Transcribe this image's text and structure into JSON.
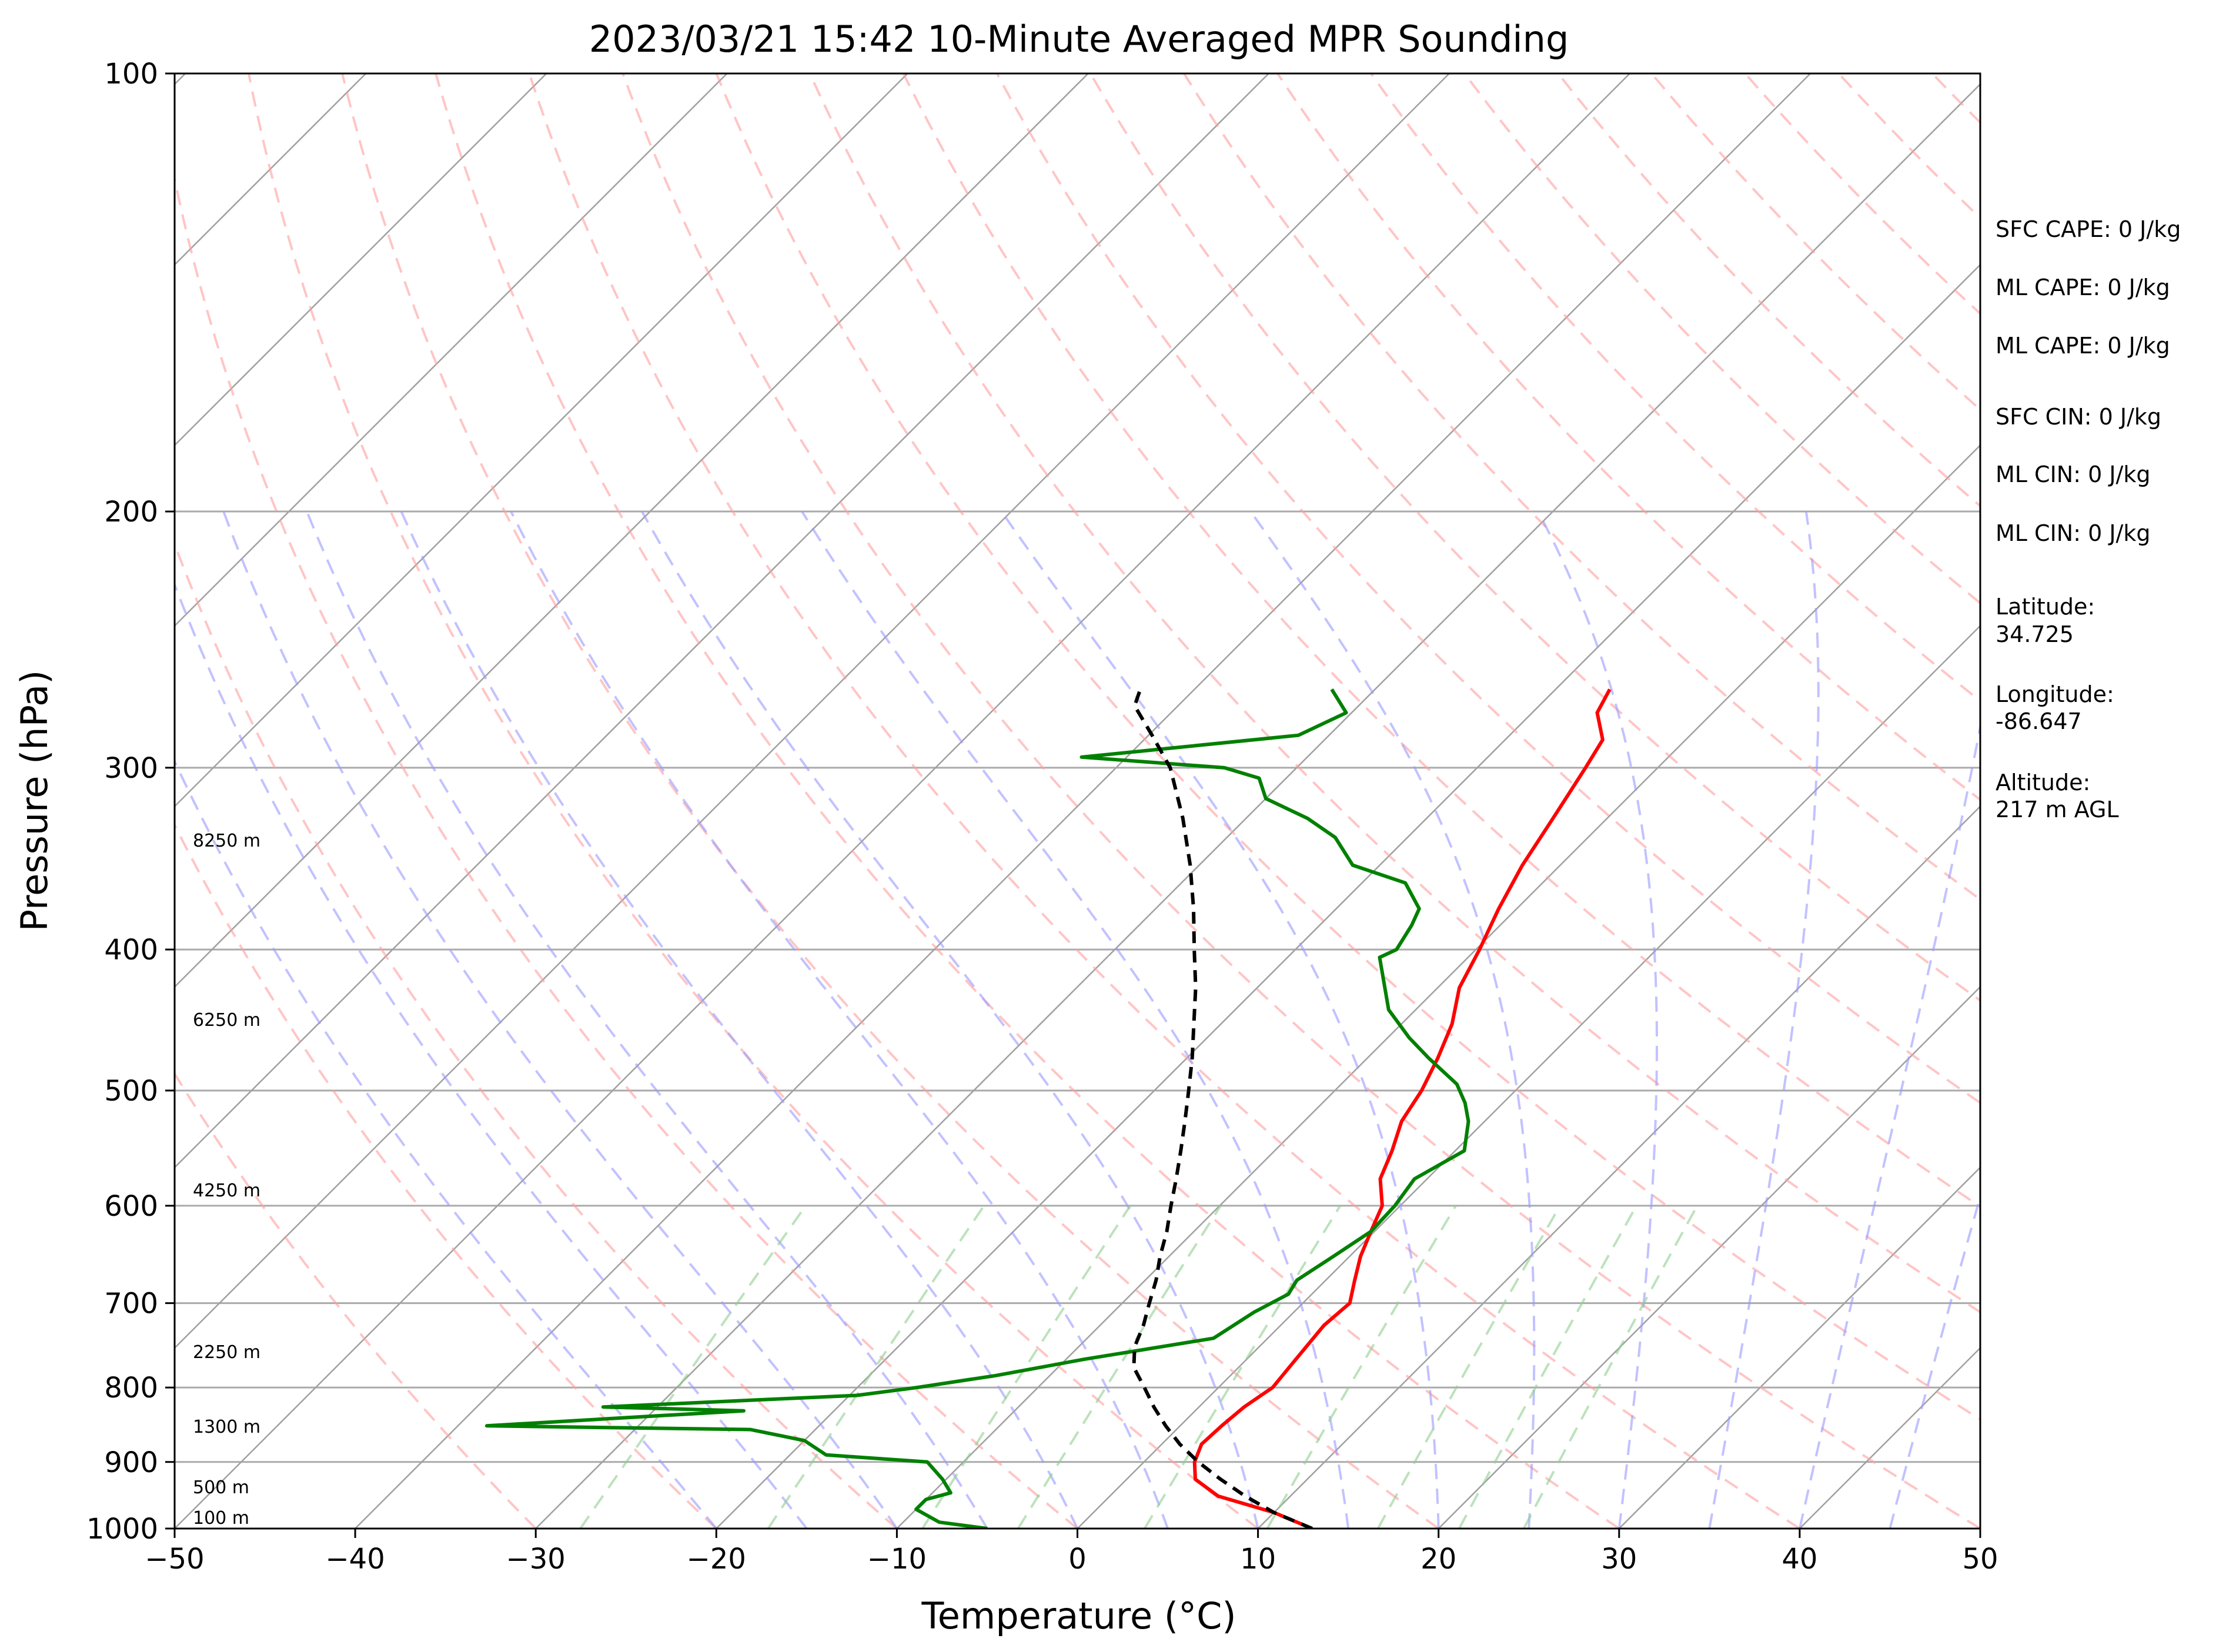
{
  "chart_data": {
    "type": "line",
    "title": "2023/03/21 15:42 10-Minute Averaged MPR Sounding",
    "xlabel": "Temperature (°C)",
    "ylabel": "Pressure (hPa)",
    "xlim": [
      -50,
      50
    ],
    "ylim": [
      1000,
      100
    ],
    "yscale": "log",
    "x_ticks": [
      "−50",
      "−40",
      "−30",
      "−20",
      "−10",
      "0",
      "10",
      "20",
      "30",
      "40",
      "50"
    ],
    "y_ticks": [
      "100",
      "200",
      "300",
      "400",
      "500",
      "600",
      "700",
      "800",
      "900",
      "1000"
    ],
    "grid": true,
    "height_labels": [
      "8250 m",
      "6250 m",
      "4250 m",
      "2250 m",
      "1300 m",
      "500 m",
      "100 m"
    ],
    "series": [
      {
        "color": "#ff0000",
        "points": [
          [
            13,
            1000
          ],
          [
            10,
            975
          ],
          [
            6,
            950
          ],
          [
            3.8,
            925
          ],
          [
            2.8,
            900
          ],
          [
            2.2,
            875
          ],
          [
            2.3,
            850
          ],
          [
            2.5,
            825
          ],
          [
            3,
            800
          ],
          [
            2.8,
            775
          ],
          [
            2.6,
            750
          ],
          [
            2.4,
            725
          ],
          [
            2.6,
            700
          ],
          [
            1.6,
            675
          ],
          [
            0.6,
            650
          ],
          [
            -0.2,
            625
          ],
          [
            -1,
            600
          ],
          [
            -2.6,
            575
          ],
          [
            -3.5,
            550
          ],
          [
            -4.6,
            525
          ],
          [
            -5.2,
            500
          ],
          [
            -6.1,
            475
          ],
          [
            -7.2,
            450
          ],
          [
            -8.8,
            425
          ],
          [
            -9.8,
            400
          ],
          [
            -11,
            375
          ],
          [
            -12.1,
            350
          ],
          [
            -13,
            325
          ],
          [
            -14,
            300
          ],
          [
            -14.6,
            287
          ],
          [
            -16.4,
            275
          ],
          [
            -17,
            265
          ]
        ]
      },
      {
        "color": "#008000",
        "points": [
          [
            -5,
            1000
          ],
          [
            -8,
            990
          ],
          [
            -10,
            970
          ],
          [
            -10,
            955
          ],
          [
            -9,
            945
          ],
          [
            -10.2,
            925
          ],
          [
            -12,
            900
          ],
          [
            -18,
            890
          ],
          [
            -20,
            870
          ],
          [
            -23.6,
            855
          ],
          [
            -38.4,
            850
          ],
          [
            -25,
            830
          ],
          [
            -33,
            825
          ],
          [
            -19.6,
            810
          ],
          [
            -16.7,
            800
          ],
          [
            -13,
            785
          ],
          [
            -9,
            765
          ],
          [
            -3,
            740
          ],
          [
            -2.2,
            710
          ],
          [
            -1.3,
            690
          ],
          [
            -1.6,
            675
          ],
          [
            -0.9,
            650
          ],
          [
            -0.2,
            625
          ],
          [
            -0.3,
            600
          ],
          [
            -0.7,
            575
          ],
          [
            0.5,
            550
          ],
          [
            -0.9,
            525
          ],
          [
            -2.1,
            510
          ],
          [
            -3.6,
            495
          ],
          [
            -6.6,
            475
          ],
          [
            -8.8,
            460
          ],
          [
            -11.5,
            440
          ],
          [
            -14.9,
            405
          ],
          [
            -14.4,
            400
          ],
          [
            -14.9,
            385
          ],
          [
            -15.4,
            375
          ],
          [
            -17.6,
            360
          ],
          [
            -21.5,
            350
          ],
          [
            -24,
            335
          ],
          [
            -26.6,
            325
          ],
          [
            -30,
            315
          ],
          [
            -31.5,
            305
          ],
          [
            -34,
            300
          ],
          [
            -42.5,
            295
          ],
          [
            -31.7,
            285
          ],
          [
            -30.3,
            275
          ],
          [
            -32.4,
            265
          ]
        ]
      },
      {
        "color": "#000000",
        "dashed": true,
        "points": [
          [
            13,
            1000
          ],
          [
            10,
            975
          ],
          [
            7.5,
            950
          ],
          [
            5.2,
            925
          ],
          [
            3,
            900
          ],
          [
            1,
            875
          ],
          [
            -0.8,
            850
          ],
          [
            -2.5,
            825
          ],
          [
            -4.1,
            800
          ],
          [
            -5.8,
            775
          ],
          [
            -6.9,
            750
          ],
          [
            -7.6,
            725
          ],
          [
            -8.5,
            700
          ],
          [
            -9.4,
            675
          ],
          [
            -10.5,
            650
          ],
          [
            -11.5,
            625
          ],
          [
            -12.7,
            600
          ],
          [
            -13.9,
            575
          ],
          [
            -15.2,
            550
          ],
          [
            -16.6,
            525
          ],
          [
            -18.1,
            500
          ],
          [
            -19.7,
            475
          ],
          [
            -21.5,
            450
          ],
          [
            -23.4,
            425
          ],
          [
            -25.6,
            400
          ],
          [
            -27.9,
            375
          ],
          [
            -30.5,
            350
          ],
          [
            -33.5,
            325
          ],
          [
            -37,
            300
          ],
          [
            -39.8,
            285
          ],
          [
            -42.4,
            272
          ],
          [
            -43,
            265
          ]
        ]
      }
    ],
    "annotations": [
      "SFC CAPE: 0 J/kg",
      "ML CAPE: 0 J/kg",
      "ML CAPE: 0 J/kg",
      "SFC CIN: 0 J/kg",
      "ML CIN: 0 J/kg",
      "ML CIN: 0 J/kg",
      "Latitude:",
      "34.725",
      "Longitude:",
      "-86.647",
      "Altitude:",
      "217 m AGL"
    ]
  }
}
